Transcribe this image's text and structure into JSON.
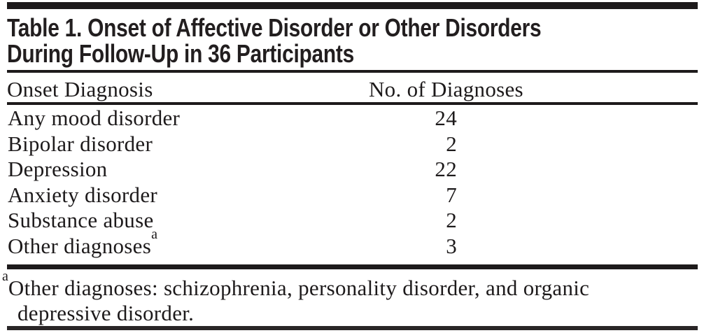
{
  "figure": {
    "title_line1": "Table 1. Onset of Affective Disorder or Other Disorders",
    "title_line2": "During Follow-Up in 36 Participants",
    "header": {
      "col1": "Onset Diagnosis",
      "col2": "No. of Diagnoses"
    },
    "rows": [
      {
        "label": "Any mood disorder",
        "sup": "",
        "value": "24"
      },
      {
        "label": "Bipolar disorder",
        "sup": "",
        "value": "2"
      },
      {
        "label": "Depression",
        "sup": "",
        "value": "22"
      },
      {
        "label": "Anxiety disorder",
        "sup": "",
        "value": "7"
      },
      {
        "label": "Substance abuse",
        "sup": "",
        "value": "2"
      },
      {
        "label": "Other diagnoses",
        "sup": "a",
        "value": "3"
      }
    ],
    "footnote": {
      "marker": "a",
      "line1": "Other diagnoses: schizophrenia, personality disorder, and organic",
      "line2": "depressive disorder."
    }
  },
  "colors": {
    "ink": "#1d1a1b",
    "background": "#ffffff"
  },
  "chart_data": {
    "type": "table",
    "title": "Table 1. Onset of Affective Disorder or Other Disorders During Follow-Up in 36 Participants",
    "columns": [
      "Onset Diagnosis",
      "No. of Diagnoses"
    ],
    "rows": [
      [
        "Any mood disorder",
        24
      ],
      [
        "Bipolar disorder",
        2
      ],
      [
        "Depression",
        22
      ],
      [
        "Anxiety disorder",
        7
      ],
      [
        "Substance abuse",
        2
      ],
      [
        "Other diagnoses",
        3
      ]
    ],
    "footnote": "Other diagnoses: schizophrenia, personality disorder, and organic depressive disorder."
  }
}
